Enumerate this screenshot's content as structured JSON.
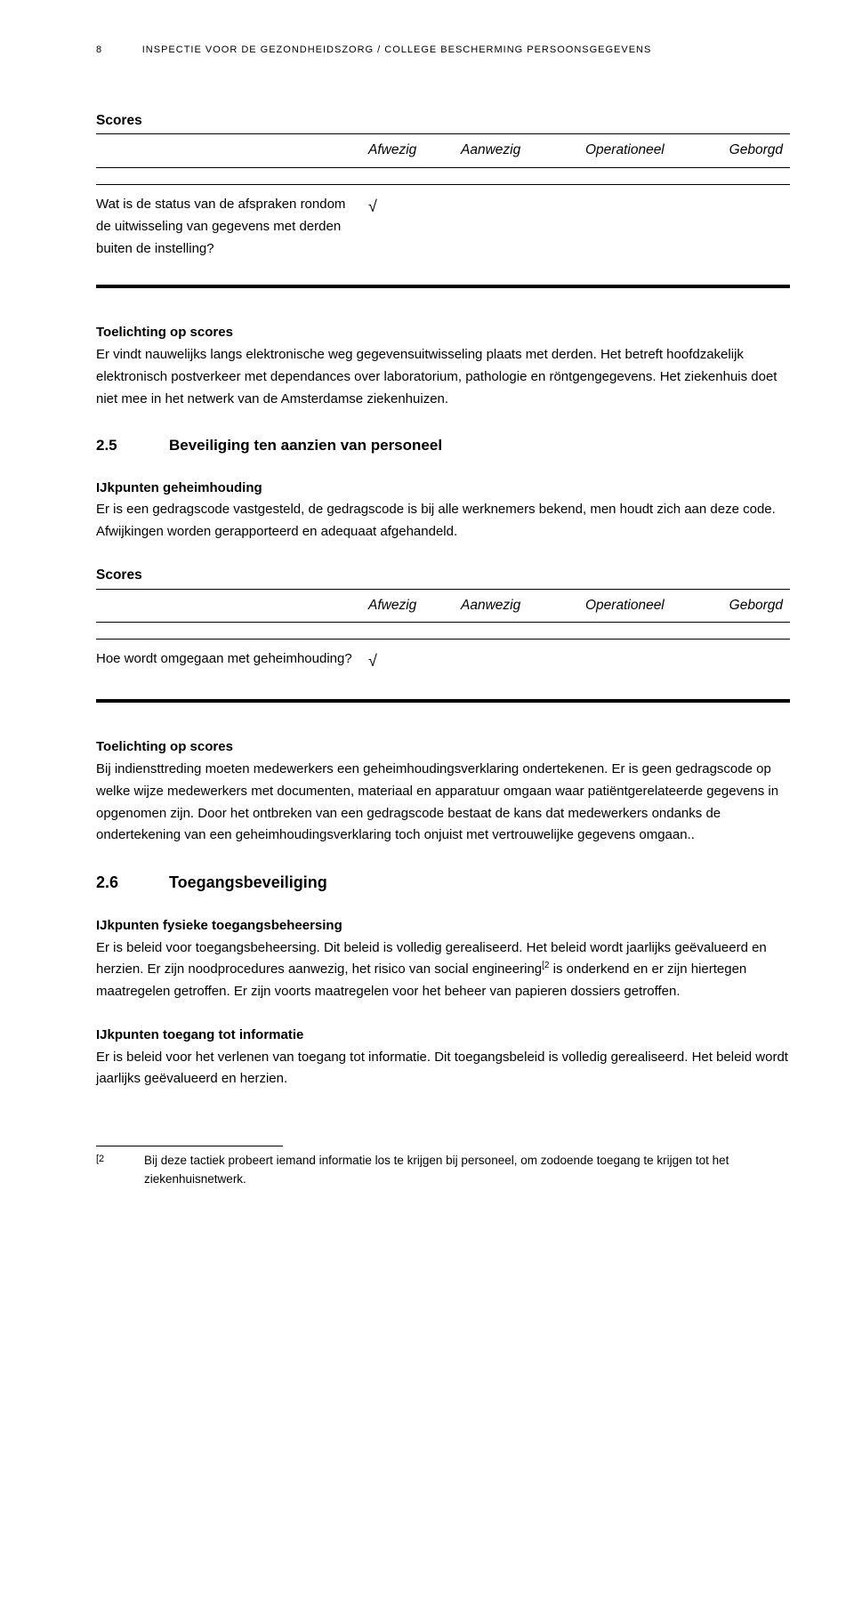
{
  "header": {
    "page_num": "8",
    "org_line": "INSPECTIE VOOR DE GEZONDHEIDSZORG / COLLEGE BESCHERMING PERSOONSGEGEVENS"
  },
  "scores1": {
    "heading": "Scores",
    "columns": {
      "afwezig": "Afwezig",
      "aanwezig": "Aanwezig",
      "operationeel": "Operationeel",
      "geborgd": "Geborgd"
    },
    "row_label": "Wat is de status van de afspraken rondom de uitwisseling van gegevens met derden buiten de instelling?",
    "mark": "√"
  },
  "toelichting1": {
    "title": "Toelichting op scores",
    "text": "Er vindt nauwelijks langs elektronische weg gegevensuitwisseling plaats met derden. Het betreft hoofdzakelijk elektronisch postverkeer met dependances over laboratorium, pathologie en röntgengegevens. Het ziekenhuis doet niet mee in het netwerk van de Amsterdamse ziekenhuizen."
  },
  "section25": {
    "num": "2.5",
    "title": "Beveiliging ten aanzien van personeel"
  },
  "ijk1": {
    "title": "IJkpunten geheimhouding",
    "text": "Er is een gedragscode vastgesteld, de gedragscode is bij alle werknemers bekend, men houdt zich aan deze code. Afwijkingen worden gerapporteerd en adequaat afgehandeld."
  },
  "scores2": {
    "heading": "Scores",
    "columns": {
      "afwezig": "Afwezig",
      "aanwezig": "Aanwezig",
      "operationeel": "Operationeel",
      "geborgd": "Geborgd"
    },
    "row_label": "Hoe wordt omgegaan met geheimhouding?",
    "mark": "√"
  },
  "toelichting2": {
    "title": "Toelichting op scores",
    "text": "Bij indiensttreding moeten medewerkers een geheimhoudingsverklaring ondertekenen. Er is geen gedragscode op welke wijze medewerkers met documenten, materiaal en apparatuur omgaan waar patiëntgerelateerde  gegevens in opgenomen zijn. Door het ontbreken van een gedragscode bestaat de kans dat medewerkers ondanks de ondertekening van een geheimhoudingsverklaring toch onjuist met vertrouwelijke gegevens omgaan.."
  },
  "section26": {
    "num": "2.6",
    "title": "Toegangsbeveiliging"
  },
  "ijk2": {
    "title": "IJkpunten fysieke toegangsbeheersing",
    "text_a": "Er is beleid voor toegangsbeheersing. Dit beleid is volledig gerealiseerd. Het beleid wordt jaarlijks geëvalueerd en herzien. Er zijn noodprocedures aanwezig, het risico van social engineering",
    "fn_marker_inline": "[2",
    "text_b": " is onderkend en er zijn hiertegen maatregelen getroffen. Er zijn voorts maatregelen voor het beheer van papieren dossiers getroffen."
  },
  "ijk3": {
    "title": "IJkpunten toegang tot informatie",
    "text": "Er is beleid voor het verlenen van toegang tot informatie. Dit toegangsbeleid is volledig gerealiseerd. Het beleid wordt jaarlijks geëvalueerd en herzien."
  },
  "footnote": {
    "marker": "[2",
    "text": "Bij deze tactiek probeert iemand informatie los te krijgen bij personeel, om zodoende toegang te krijgen tot het ziekenhuisnetwerk."
  }
}
